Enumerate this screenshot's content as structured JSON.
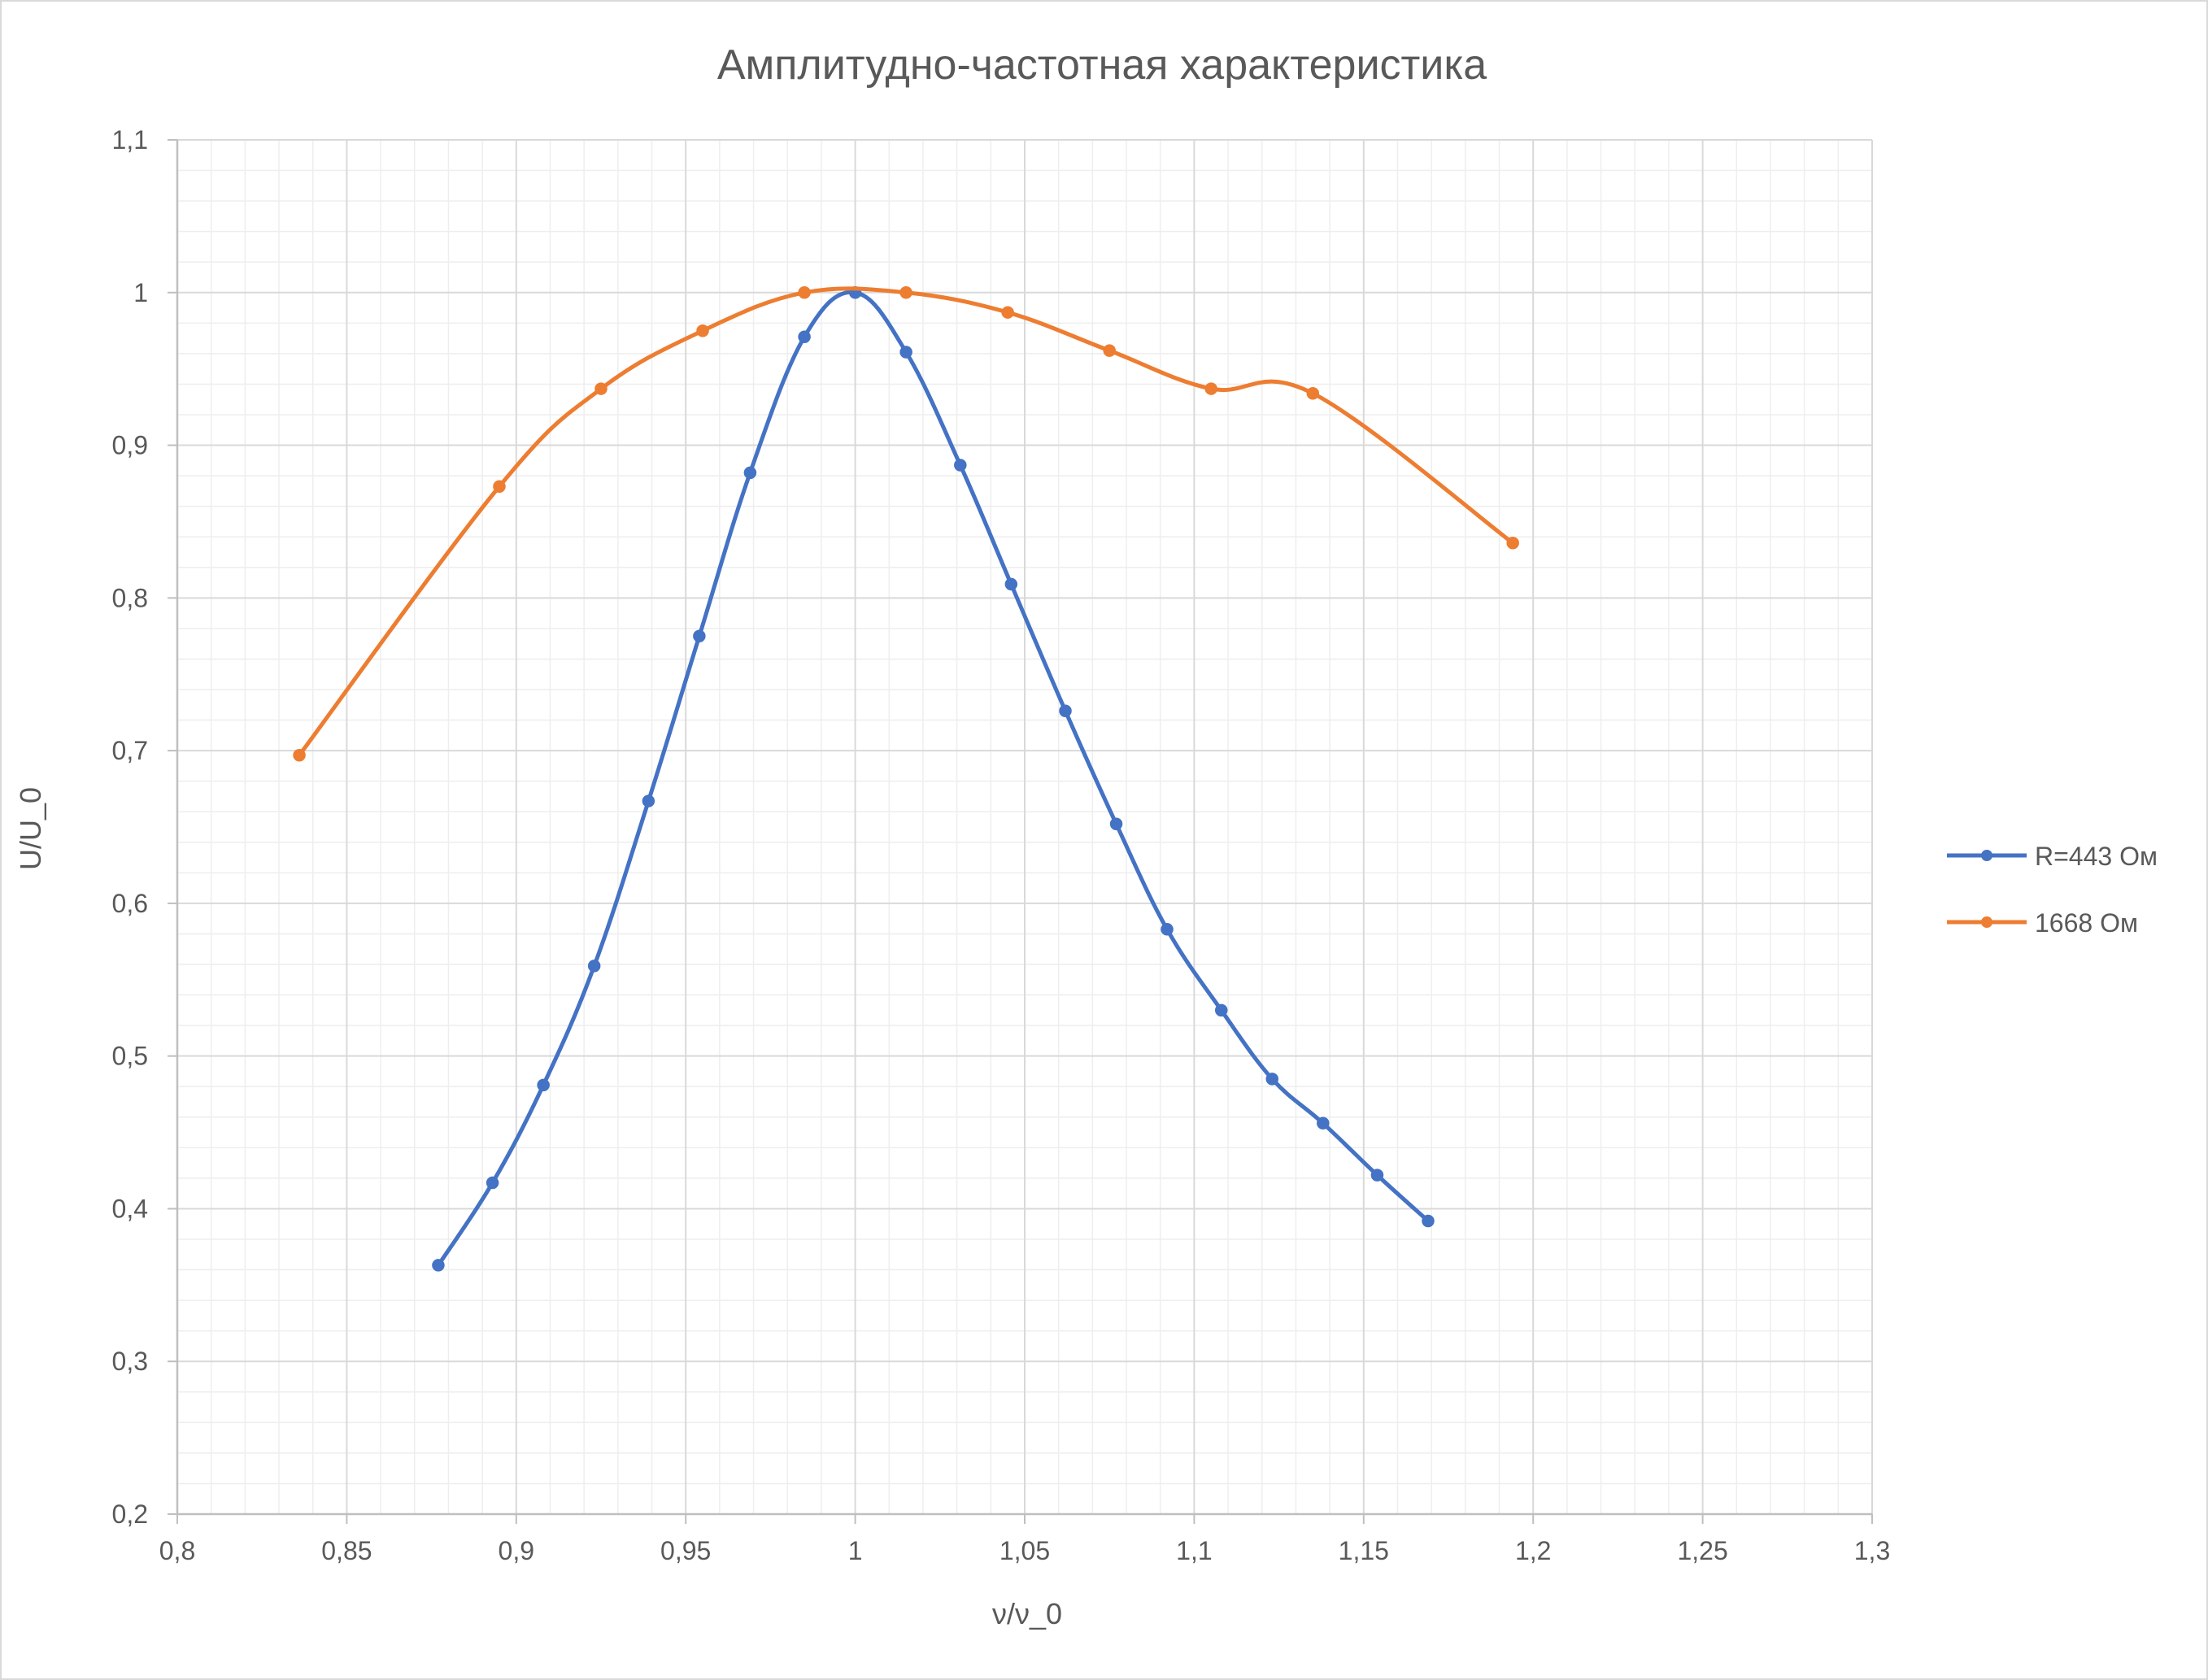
{
  "chart_data": {
    "type": "scatter",
    "title": "Амплитудно-частотная характеристика",
    "xlabel": "ν/ν_0",
    "ylabel": "U/U_0",
    "xlim": [
      0.8,
      1.3
    ],
    "ylim": [
      0.2,
      1.1
    ],
    "x_ticks": [
      "0,8",
      "0,85",
      "0,9",
      "0,95",
      "1",
      "1,05",
      "1,1",
      "1,15",
      "1,2",
      "1,25",
      "1,3"
    ],
    "y_ticks": [
      "0,2",
      "0,3",
      "0,4",
      "0,5",
      "0,6",
      "0,7",
      "0,8",
      "0,9",
      "1",
      "1,1"
    ],
    "grid": "major and minor",
    "legend_position": "right",
    "series": [
      {
        "name": "R=443 Ом",
        "color": "#4472c4",
        "x": [
          0.877,
          0.893,
          0.908,
          0.923,
          0.939,
          0.954,
          0.969,
          0.985,
          1.0,
          1.015,
          1.031,
          1.046,
          1.062,
          1.077,
          1.092,
          1.108,
          1.123,
          1.138,
          1.154,
          1.169
        ],
        "y": [
          0.363,
          0.417,
          0.481,
          0.559,
          0.667,
          0.775,
          0.882,
          0.971,
          1.0,
          0.961,
          0.887,
          0.809,
          0.726,
          0.652,
          0.583,
          0.53,
          0.485,
          0.456,
          0.422,
          0.392
        ]
      },
      {
        "name": "1668 Ом",
        "color": "#ed7d31",
        "x": [
          0.836,
          0.895,
          0.925,
          0.955,
          0.985,
          1.015,
          1.045,
          1.075,
          1.105,
          1.135,
          1.194
        ],
        "y": [
          0.697,
          0.873,
          0.937,
          0.975,
          1.0,
          1.0,
          0.987,
          0.962,
          0.937,
          0.934,
          0.836
        ]
      }
    ]
  }
}
